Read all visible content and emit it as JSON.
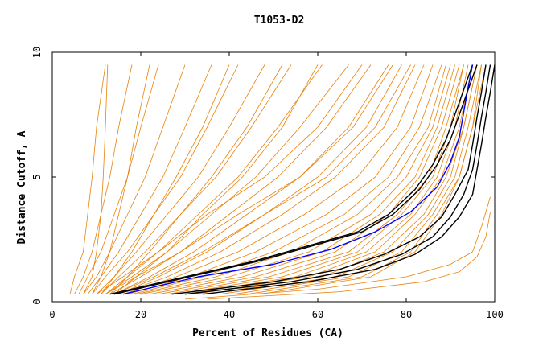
{
  "chart_data": {
    "type": "line",
    "title": "T1053-D2",
    "xlabel": "Percent of Residues (CA)",
    "ylabel": "Distance Cutoff, A",
    "xlim": [
      0,
      100
    ],
    "ylim": [
      0,
      10
    ],
    "xticks": [
      0,
      20,
      40,
      60,
      80,
      100
    ],
    "yticks": [
      0,
      5,
      10
    ],
    "grid": false,
    "legend": "none",
    "colors": {
      "ensemble": "#e8820a",
      "reference": "#000000",
      "highlight": "#0000ff"
    },
    "ensemble_series": [
      {
        "x": [
          4,
          5,
          7,
          8,
          9,
          10,
          12
        ],
        "y": [
          0.3,
          1.0,
          2.0,
          3.5,
          5.0,
          7.0,
          9.5
        ]
      },
      {
        "x": [
          5,
          7,
          9,
          11,
          13,
          15,
          18
        ],
        "y": [
          0.3,
          1.0,
          2.0,
          3.5,
          5.0,
          7.0,
          9.5
        ]
      },
      {
        "x": [
          6,
          8,
          11,
          14,
          17,
          20,
          24
        ],
        "y": [
          0.3,
          1.0,
          2.0,
          3.5,
          5.0,
          7.0,
          9.5
        ]
      },
      {
        "x": [
          7,
          10,
          13,
          17,
          21,
          25,
          30
        ],
        "y": [
          0.3,
          1.0,
          2.0,
          3.5,
          5.0,
          7.0,
          9.5
        ]
      },
      {
        "x": [
          8,
          11,
          15,
          20,
          25,
          30,
          36
        ],
        "y": [
          0.3,
          1.0,
          2.0,
          3.5,
          5.0,
          7.0,
          9.5
        ]
      },
      {
        "x": [
          9,
          12,
          17,
          23,
          29,
          35,
          42
        ],
        "y": [
          0.3,
          1.0,
          2.0,
          3.5,
          5.0,
          7.0,
          9.5
        ]
      },
      {
        "x": [
          10,
          14,
          19,
          26,
          33,
          40,
          48
        ],
        "y": [
          0.3,
          1.0,
          2.0,
          3.5,
          5.0,
          7.0,
          9.5
        ]
      },
      {
        "x": [
          11,
          15,
          21,
          29,
          37,
          45,
          54
        ],
        "y": [
          0.3,
          1.0,
          2.0,
          3.5,
          5.0,
          7.0,
          9.5
        ]
      },
      {
        "x": [
          12,
          17,
          24,
          33,
          42,
          51,
          61
        ],
        "y": [
          0.3,
          1.0,
          2.0,
          3.5,
          5.0,
          7.0,
          9.5
        ]
      },
      {
        "x": [
          12,
          18,
          26,
          36,
          46,
          56,
          67
        ],
        "y": [
          0.3,
          1.0,
          2.0,
          3.5,
          5.0,
          7.0,
          9.5
        ]
      },
      {
        "x": [
          13,
          20,
          29,
          40,
          51,
          62,
          72
        ],
        "y": [
          0.3,
          1.0,
          2.0,
          3.5,
          5.0,
          7.0,
          9.5
        ]
      },
      {
        "x": [
          14,
          22,
          32,
          44,
          56,
          67,
          76
        ],
        "y": [
          0.3,
          1.0,
          2.0,
          3.5,
          5.0,
          7.0,
          9.5
        ]
      },
      {
        "x": [
          15,
          24,
          35,
          48,
          60,
          71,
          79
        ],
        "y": [
          0.3,
          1.0,
          2.0,
          3.5,
          5.0,
          7.0,
          9.5
        ]
      },
      {
        "x": [
          15,
          26,
          38,
          52,
          64,
          75,
          82
        ],
        "y": [
          0.3,
          1.0,
          2.0,
          3.5,
          5.0,
          7.0,
          9.5
        ]
      },
      {
        "x": [
          16,
          28,
          42,
          57,
          69,
          78,
          84
        ],
        "y": [
          0.3,
          1.0,
          2.0,
          3.5,
          5.0,
          7.0,
          9.5
        ]
      },
      {
        "x": [
          17,
          31,
          46,
          62,
          73,
          81,
          86
        ],
        "y": [
          0.3,
          1.0,
          2.0,
          3.5,
          5.0,
          7.0,
          9.5
        ]
      },
      {
        "x": [
          18,
          34,
          50,
          66,
          76,
          83,
          88
        ],
        "y": [
          0.3,
          1.0,
          2.0,
          3.5,
          5.0,
          7.0,
          9.5
        ]
      },
      {
        "x": [
          19,
          37,
          54,
          69,
          78,
          85,
          89
        ],
        "y": [
          0.3,
          1.0,
          2.0,
          3.5,
          5.0,
          7.0,
          9.5
        ]
      },
      {
        "x": [
          20,
          40,
          58,
          72,
          80,
          86,
          90
        ],
        "y": [
          0.3,
          1.0,
          2.0,
          3.5,
          5.0,
          7.0,
          9.5
        ]
      },
      {
        "x": [
          22,
          43,
          61,
          74,
          82,
          87,
          91
        ],
        "y": [
          0.3,
          1.0,
          2.0,
          3.5,
          5.0,
          7.0,
          9.5
        ]
      },
      {
        "x": [
          24,
          46,
          64,
          76,
          83,
          88,
          92
        ],
        "y": [
          0.3,
          1.0,
          2.0,
          3.5,
          5.0,
          7.0,
          9.5
        ]
      },
      {
        "x": [
          26,
          49,
          67,
          78,
          85,
          89,
          93
        ],
        "y": [
          0.3,
          1.0,
          2.0,
          3.5,
          5.0,
          7.0,
          9.5
        ]
      },
      {
        "x": [
          28,
          52,
          69,
          79,
          86,
          90,
          93
        ],
        "y": [
          0.3,
          1.0,
          2.0,
          3.5,
          5.0,
          7.0,
          9.5
        ]
      },
      {
        "x": [
          30,
          55,
          71,
          81,
          87,
          91,
          94
        ],
        "y": [
          0.3,
          1.0,
          2.0,
          3.5,
          5.0,
          7.0,
          9.5
        ]
      },
      {
        "x": [
          32,
          58,
          73,
          82,
          88,
          92,
          95
        ],
        "y": [
          0.3,
          1.0,
          2.0,
          3.5,
          5.0,
          7.0,
          9.5
        ]
      },
      {
        "x": [
          35,
          61,
          75,
          84,
          89,
          93,
          96
        ],
        "y": [
          0.3,
          1.0,
          2.0,
          3.5,
          5.0,
          7.0,
          9.5
        ]
      },
      {
        "x": [
          38,
          64,
          77,
          85,
          90,
          93,
          96
        ],
        "y": [
          0.3,
          1.0,
          2.0,
          3.5,
          5.0,
          7.0,
          9.5
        ]
      },
      {
        "x": [
          41,
          67,
          79,
          86,
          91,
          94,
          97
        ],
        "y": [
          0.3,
          1.0,
          2.0,
          3.5,
          5.0,
          7.0,
          9.5
        ]
      },
      {
        "x": [
          44,
          70,
          81,
          87,
          92,
          95,
          97
        ],
        "y": [
          0.3,
          1.0,
          2.0,
          3.5,
          5.0,
          7.0,
          9.5
        ]
      },
      {
        "x": [
          47,
          72,
          82,
          88,
          92,
          95,
          98
        ],
        "y": [
          0.3,
          1.0,
          2.0,
          3.5,
          5.0,
          7.0,
          9.5
        ]
      },
      {
        "x": [
          7,
          9,
          10,
          11,
          11.5,
          12,
          12.5
        ],
        "y": [
          0.3,
          1.0,
          2.0,
          3.5,
          5.0,
          7.0,
          9.5
        ]
      },
      {
        "x": [
          9,
          11,
          13,
          15,
          17,
          19,
          22
        ],
        "y": [
          0.3,
          1.0,
          2.0,
          3.5,
          5.0,
          7.0,
          9.5
        ]
      },
      {
        "x": [
          11,
          14,
          18,
          23,
          28,
          34,
          40
        ],
        "y": [
          0.3,
          1.0,
          2.0,
          3.5,
          5.0,
          7.0,
          9.5
        ]
      },
      {
        "x": [
          13,
          17,
          22,
          29,
          36,
          44,
          52
        ],
        "y": [
          0.3,
          1.0,
          2.0,
          3.5,
          5.0,
          7.0,
          9.5
        ]
      },
      {
        "x": [
          14,
          19,
          26,
          34,
          43,
          52,
          60
        ],
        "y": [
          0.3,
          1.0,
          2.0,
          3.5,
          5.0,
          7.0,
          9.5
        ]
      },
      {
        "x": [
          10,
          16,
          24,
          35,
          48,
          60,
          70
        ],
        "y": [
          0.3,
          1.0,
          2.0,
          3.5,
          5.0,
          7.0,
          9.5
        ]
      },
      {
        "x": [
          12,
          19,
          29,
          42,
          56,
          68,
          77
        ],
        "y": [
          0.3,
          1.0,
          2.0,
          3.5,
          5.0,
          7.0,
          9.5
        ]
      },
      {
        "x": [
          14,
          23,
          34,
          48,
          62,
          73,
          81
        ],
        "y": [
          0.3,
          1.0,
          2.0,
          3.5,
          5.0,
          7.0,
          9.5
        ]
      },
      {
        "x": [
          30,
          60,
          80,
          90,
          95,
          97,
          99
        ],
        "y": [
          0.1,
          0.5,
          1.0,
          1.5,
          2.0,
          3.0,
          4.2
        ]
      },
      {
        "x": [
          35,
          65,
          84,
          92,
          96,
          98,
          99
        ],
        "y": [
          0.1,
          0.4,
          0.8,
          1.2,
          1.8,
          2.6,
          3.6
        ]
      }
    ],
    "reference_series": [
      {
        "x": [
          13,
          30,
          45,
          57,
          69,
          76,
          82,
          86,
          89,
          91,
          93,
          95
        ],
        "y": [
          0.3,
          1.0,
          1.6,
          2.2,
          2.8,
          3.5,
          4.5,
          5.5,
          6.5,
          7.5,
          8.5,
          9.5
        ]
      },
      {
        "x": [
          14,
          31,
          46,
          58,
          70,
          77,
          83,
          87,
          90,
          92,
          94,
          96
        ],
        "y": [
          0.3,
          1.0,
          1.6,
          2.2,
          2.8,
          3.5,
          4.5,
          5.5,
          6.5,
          7.5,
          8.5,
          9.5
        ]
      },
      {
        "x": [
          27,
          50,
          65,
          75,
          83,
          88,
          91,
          94,
          95,
          96,
          97,
          98
        ],
        "y": [
          0.3,
          0.8,
          1.3,
          1.9,
          2.6,
          3.4,
          4.3,
          5.3,
          6.3,
          7.4,
          8.4,
          9.5
        ]
      },
      {
        "x": [
          30,
          54,
          69,
          79,
          86,
          90,
          93,
          95,
          96,
          97,
          98,
          99
        ],
        "y": [
          0.3,
          0.8,
          1.3,
          1.9,
          2.6,
          3.4,
          4.3,
          5.3,
          6.3,
          7.4,
          8.4,
          9.5
        ]
      },
      {
        "x": [
          34,
          58,
          73,
          82,
          88,
          92,
          95,
          96,
          97,
          98,
          99,
          100
        ],
        "y": [
          0.3,
          0.8,
          1.3,
          1.9,
          2.6,
          3.4,
          4.3,
          5.3,
          6.3,
          7.4,
          8.4,
          9.5
        ]
      }
    ],
    "highlight_series": {
      "x": [
        16,
        33,
        50,
        63,
        73,
        81,
        87,
        90,
        92,
        93,
        94,
        95
      ],
      "y": [
        0.3,
        1.0,
        1.5,
        2.1,
        2.8,
        3.6,
        4.6,
        5.6,
        6.6,
        7.6,
        8.6,
        9.5
      ]
    }
  }
}
